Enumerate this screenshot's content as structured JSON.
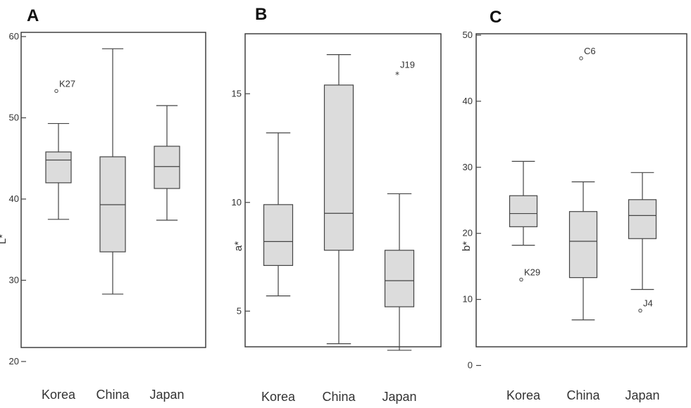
{
  "chart_data": [
    {
      "type": "box",
      "panel_label": "A",
      "ylabel": "L*",
      "ylim": [
        18,
        60
      ],
      "yticks": [
        20,
        30,
        40,
        50,
        60
      ],
      "categories": [
        "Korea",
        "China",
        "Japan"
      ],
      "boxes": [
        {
          "category": "Korea",
          "whisker_low": 37.5,
          "q1": 42.0,
          "median": 44.8,
          "q3": 45.8,
          "whisker_high": 49.3
        },
        {
          "category": "China",
          "whisker_low": 28.3,
          "q1": 33.5,
          "median": 39.3,
          "q3": 45.2,
          "whisker_high": 58.5
        },
        {
          "category": "Japan",
          "whisker_low": 37.4,
          "q1": 41.3,
          "median": 44.0,
          "q3": 46.5,
          "whisker_high": 51.5
        }
      ],
      "outliers": [
        {
          "category": "Korea",
          "value": 53.3,
          "label": "K27",
          "marker": "o"
        }
      ]
    },
    {
      "type": "box",
      "panel_label": "B",
      "ylabel": "a*",
      "ylim": [
        2,
        17.5
      ],
      "yticks": [
        5,
        10,
        15
      ],
      "categories": [
        "Korea",
        "China",
        "Japan"
      ],
      "boxes": [
        {
          "category": "Korea",
          "whisker_low": 5.7,
          "q1": 7.1,
          "median": 8.2,
          "q3": 9.9,
          "whisker_high": 13.2
        },
        {
          "category": "China",
          "whisker_low": 3.5,
          "q1": 7.8,
          "median": 9.5,
          "q3": 15.4,
          "whisker_high": 16.8
        },
        {
          "category": "Japan",
          "whisker_low": 3.2,
          "q1": 5.2,
          "median": 6.4,
          "q3": 7.8,
          "whisker_high": 10.4
        }
      ],
      "outliers": [
        {
          "category": "Japan",
          "value": 16.0,
          "label": "J19",
          "marker": "*"
        }
      ]
    },
    {
      "type": "box",
      "panel_label": "C",
      "ylabel": "b*",
      "ylim": [
        -2.5,
        50
      ],
      "yticks": [
        0,
        10,
        20,
        30,
        40,
        50
      ],
      "categories": [
        "Korea",
        "China",
        "Japan"
      ],
      "boxes": [
        {
          "category": "Korea",
          "whisker_low": 18.2,
          "q1": 21.0,
          "median": 23.0,
          "q3": 25.7,
          "whisker_high": 30.9
        },
        {
          "category": "China",
          "whisker_low": 6.9,
          "q1": 13.3,
          "median": 18.8,
          "q3": 23.3,
          "whisker_high": 27.8
        },
        {
          "category": "Japan",
          "whisker_low": 11.5,
          "q1": 19.2,
          "median": 22.7,
          "q3": 25.1,
          "whisker_high": 29.2
        }
      ],
      "outliers": [
        {
          "category": "Korea",
          "value": 13.0,
          "label": "K29",
          "marker": "o"
        },
        {
          "category": "China",
          "value": 46.5,
          "label": "C6",
          "marker": "o"
        },
        {
          "category": "Japan",
          "value": 8.3,
          "label": "J4",
          "marker": "o"
        }
      ]
    }
  ]
}
